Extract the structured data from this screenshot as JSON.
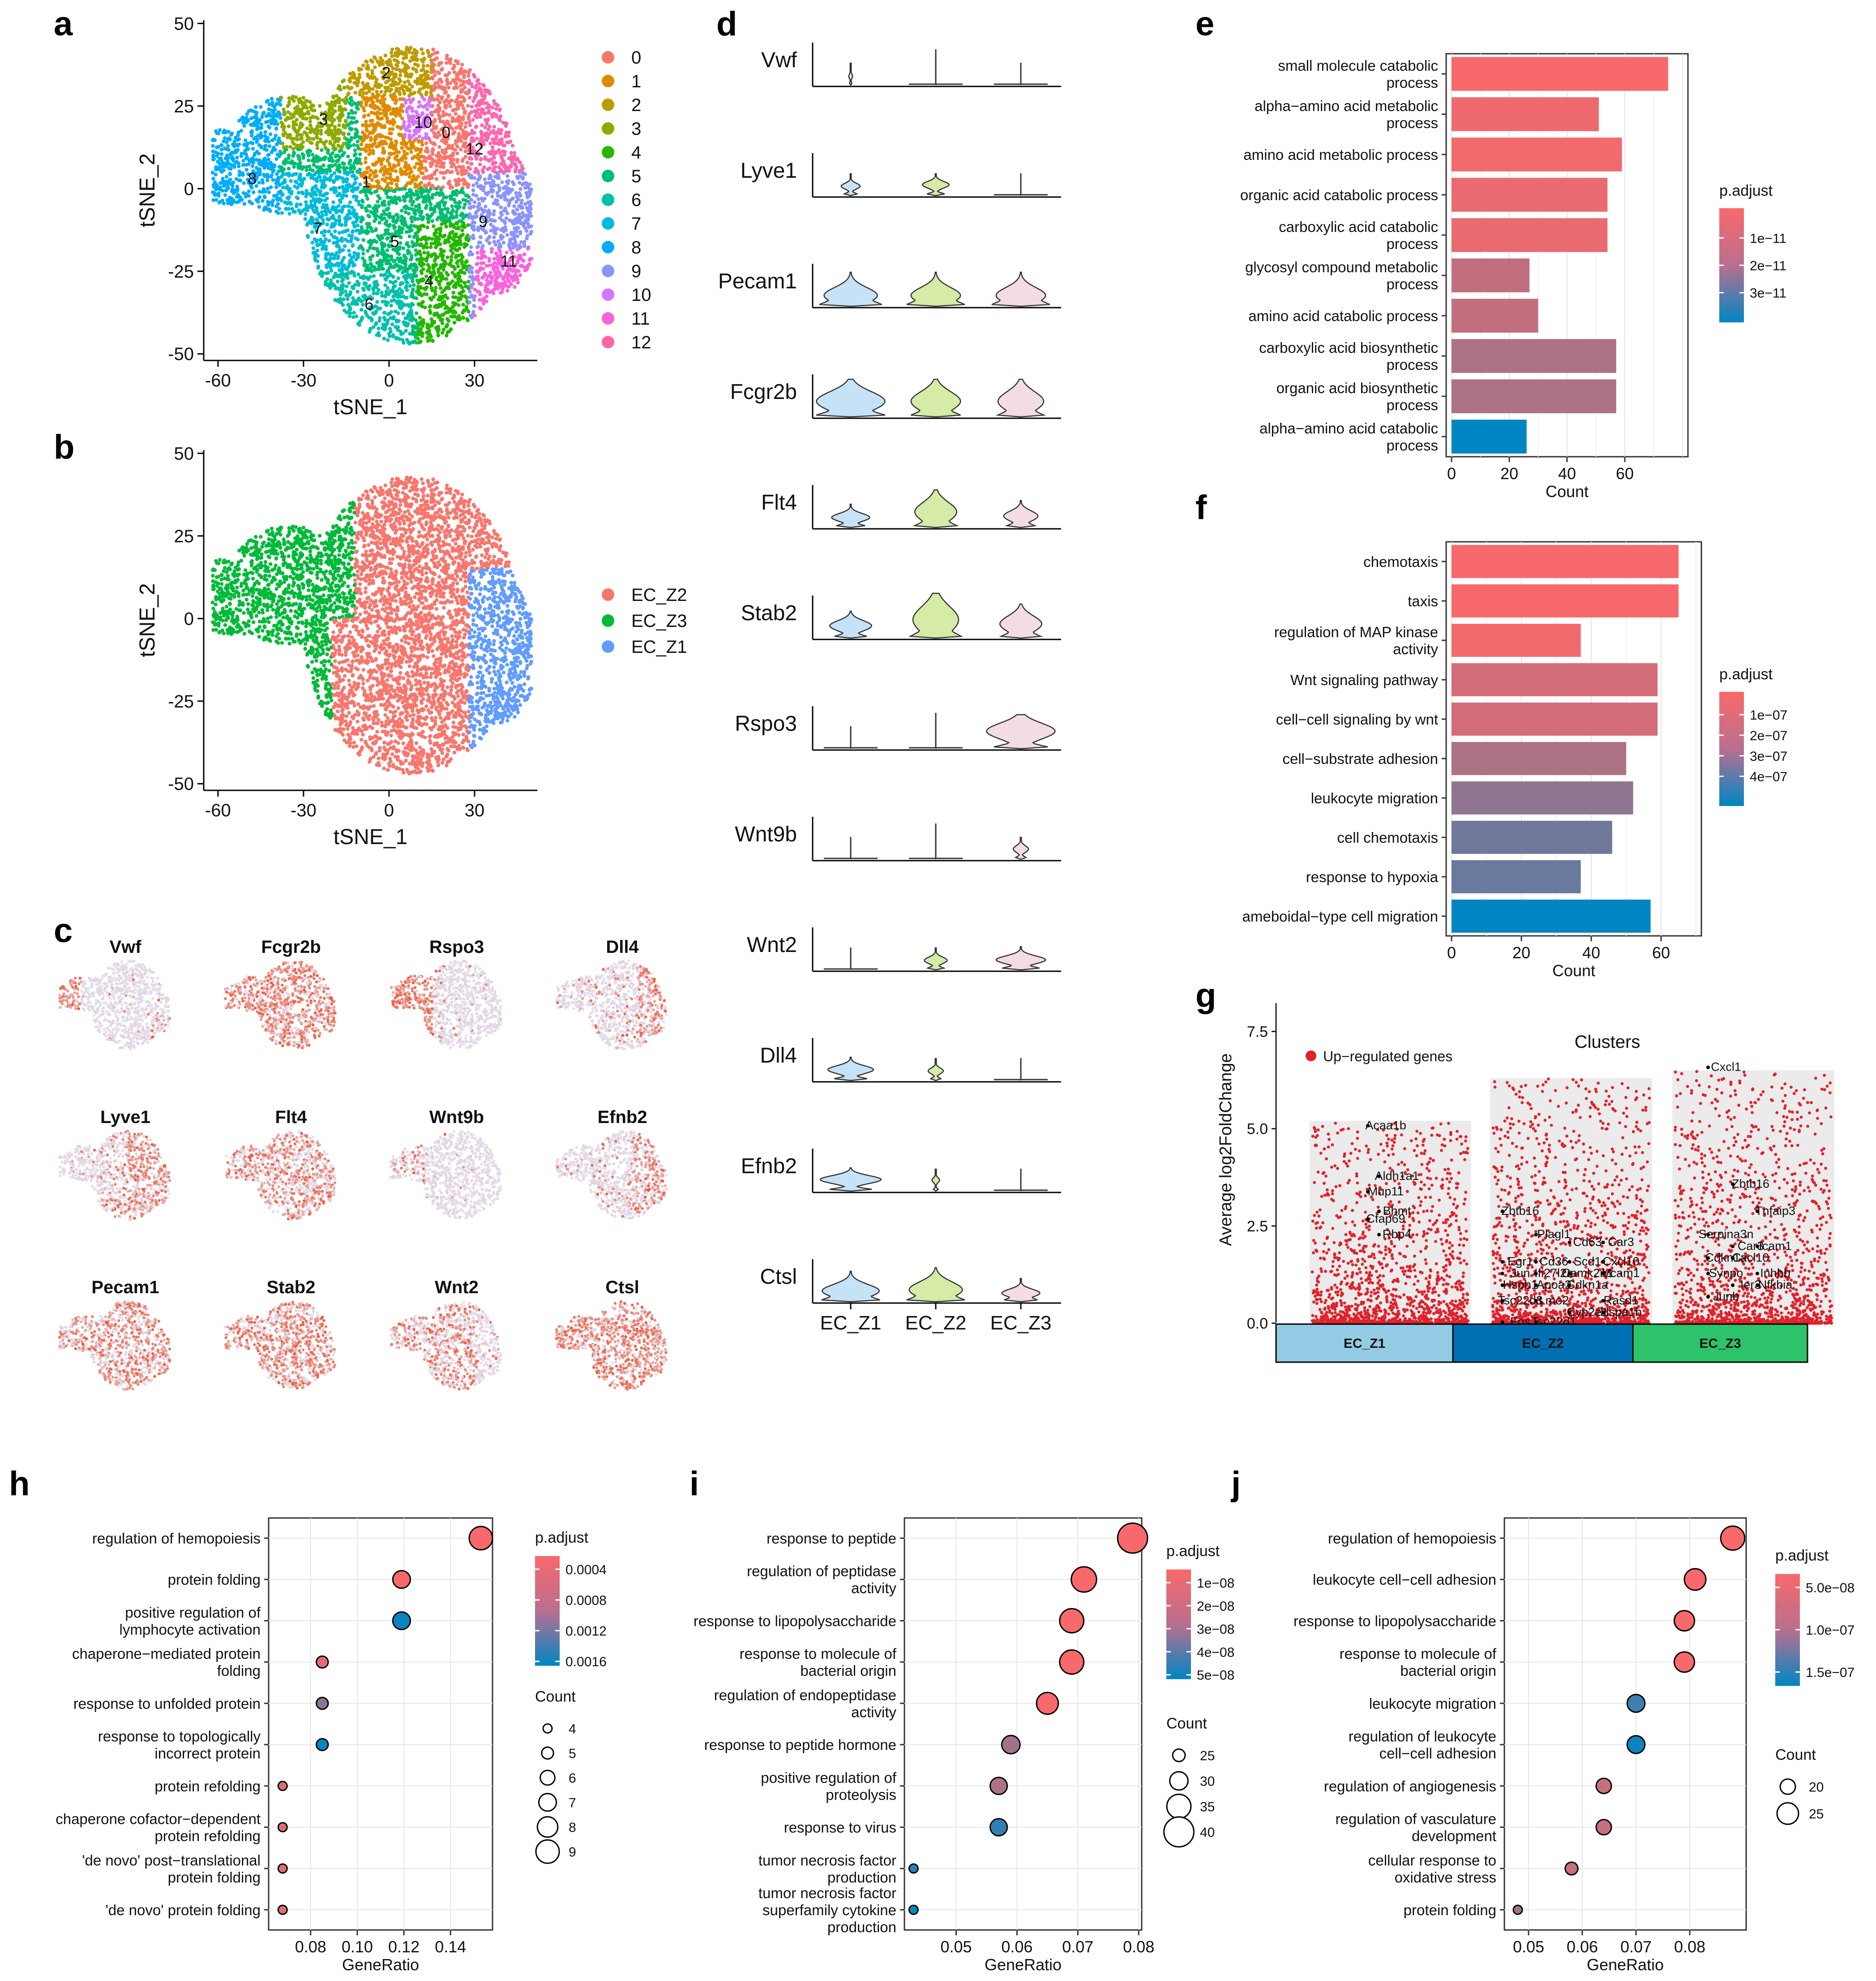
{
  "colors": {
    "clusters": [
      "#F8766D",
      "#E18A00",
      "#BE9C00",
      "#8CAB00",
      "#24B700",
      "#00BE70",
      "#00C1AB",
      "#00BBDA",
      "#00ACFC",
      "#8B93FF",
      "#D575FE",
      "#F962DD",
      "#FF65AC"
    ],
    "zones": {
      "EC_Z2": "#F8766D",
      "EC_Z3": "#00BA38",
      "EC_Z1": "#619CFF"
    },
    "violin": {
      "EC_Z1": "#C6E2F7",
      "EC_Z2": "#D5EBA6",
      "EC_Z3": "#F3DCE4"
    },
    "featureLow": "#E3E4F5",
    "featureHigh": "#EE5A3A",
    "padjHigh": "#F8696B",
    "padjLow": "#0086C3",
    "up": "#E2212A",
    "zoneBoxes": {
      "EC_Z1": "#93CBE4",
      "EC_Z2": "#0070B3",
      "EC_Z3": "#2DC36A"
    }
  },
  "panel_a": {
    "label": "a",
    "xlabel": "tSNE_1",
    "ylabel": "tSNE_2",
    "xticks": [
      "-60",
      "-30",
      "0",
      "30"
    ],
    "yticks": [
      "50",
      "25",
      "0",
      "-25",
      "-50"
    ],
    "legend": [
      "0",
      "1",
      "2",
      "3",
      "4",
      "5",
      "6",
      "7",
      "8",
      "9",
      "10",
      "11",
      "12"
    ],
    "cluster_labels": [
      "0",
      "1",
      "2",
      "3",
      "4",
      "5",
      "6",
      "7",
      "8",
      "9",
      "10",
      "11",
      "12"
    ]
  },
  "panel_b": {
    "label": "b",
    "xlabel": "tSNE_1",
    "ylabel": "tSNE_2",
    "xticks": [
      "-60",
      "-30",
      "0",
      "30"
    ],
    "yticks": [
      "50",
      "25",
      "0",
      "-25",
      "-50"
    ],
    "legend": [
      "EC_Z2",
      "EC_Z3",
      "EC_Z1"
    ]
  },
  "panel_c": {
    "label": "c",
    "genes": [
      "Vwf",
      "Fcgr2b",
      "Rspo3",
      "Dll4",
      "Lyve1",
      "Flt4",
      "Wnt9b",
      "Efnb2",
      "Pecam1",
      "Stab2",
      "Wnt2",
      "Ctsl"
    ]
  },
  "panel_d": {
    "label": "d",
    "genes": [
      "Vwf",
      "Lyve1",
      "Pecam1",
      "Fcgr2b",
      "Flt4",
      "Stab2",
      "Rspo3",
      "Wnt9b",
      "Wnt2",
      "Dll4",
      "Efnb2",
      "Ctsl"
    ],
    "groups": [
      "EC_Z1",
      "EC_Z2",
      "EC_Z3"
    ]
  },
  "panel_e": {
    "label": "e",
    "chart_data": {
      "type": "bar",
      "orientation": "horizontal",
      "categories": [
        [
          "small molecule catabolic",
          "process"
        ],
        [
          "alpha−amino acid metabolic",
          "process"
        ],
        [
          "amino acid metabolic process"
        ],
        [
          "organic acid catabolic process"
        ],
        [
          "carboxylic acid catabolic",
          "process"
        ],
        [
          "glycosyl compound metabolic",
          "process"
        ],
        [
          "amino acid catabolic process"
        ],
        [
          "carboxylic acid biosynthetic",
          "process"
        ],
        [
          "organic acid biosynthetic",
          "process"
        ],
        [
          "alpha−amino acid catabolic",
          "process"
        ]
      ],
      "values": [
        75,
        51,
        59,
        54,
        54,
        27,
        30,
        57,
        57,
        26
      ],
      "padj_position": [
        0.0,
        0.04,
        0.02,
        0.06,
        0.06,
        0.22,
        0.22,
        0.3,
        0.3,
        1.0
      ],
      "xlabel": "Count",
      "xticks": [
        "0",
        "20",
        "40",
        "60"
      ],
      "xlim": [
        0,
        80
      ],
      "legend_title": "p.adjust",
      "legend_ticks": [
        "1e−11",
        "2e−11",
        "3e−11"
      ]
    }
  },
  "panel_f": {
    "label": "f",
    "chart_data": {
      "type": "bar",
      "orientation": "horizontal",
      "categories": [
        [
          "chemotaxis"
        ],
        [
          "taxis"
        ],
        [
          "regulation of MAP kinase",
          "activity"
        ],
        [
          "Wnt signaling pathway"
        ],
        [
          "cell−cell signaling by wnt"
        ],
        [
          "cell−substrate adhesion"
        ],
        [
          "leukocyte migration"
        ],
        [
          "cell chemotaxis"
        ],
        [
          "response to hypoxia"
        ],
        [
          "ameboidal−type cell migration"
        ]
      ],
      "values": [
        65,
        65,
        37,
        59,
        59,
        50,
        52,
        46,
        37,
        57
      ],
      "padj_position": [
        0.0,
        0.0,
        0.02,
        0.15,
        0.15,
        0.3,
        0.42,
        0.55,
        0.58,
        1.0
      ],
      "xlabel": "Count",
      "xticks": [
        "0",
        "20",
        "40",
        "60"
      ],
      "xlim": [
        0,
        70
      ],
      "legend_title": "p.adjust",
      "legend_ticks": [
        "1e−07",
        "2e−07",
        "3e−07",
        "4e−07"
      ]
    }
  },
  "panel_g": {
    "label": "g",
    "chart_data": {
      "type": "scatter",
      "title": "Clusters",
      "ylabel": "Average log2FoldChange",
      "yticks": [
        "0.0",
        "2.5",
        "5.0",
        "7.5"
      ],
      "ylim": [
        0,
        8
      ],
      "legend": "Up−regulated genes",
      "groups": [
        "EC_Z1",
        "EC_Z2",
        "EC_Z3"
      ],
      "labeled_genes": {
        "EC_Z1": [
          [
            "Acaa1b",
            5.1
          ],
          [
            "Aldh1a1",
            3.8
          ],
          [
            "Mup11",
            3.4
          ],
          [
            "Bhmt",
            2.9
          ],
          [
            "Cfap69",
            2.7
          ],
          [
            "Rbp4",
            2.3
          ]
        ],
        "EC_Z2": [
          [
            "Zbtb16",
            2.9
          ],
          [
            "Plagl1",
            2.3
          ],
          [
            "Cd63",
            2.1
          ],
          [
            "Car3",
            2.1
          ],
          [
            "Egr1",
            1.6
          ],
          [
            "Cd36",
            1.6
          ],
          [
            "Scd1",
            1.6
          ],
          [
            "Cxcl10",
            1.6
          ],
          [
            "Jun",
            1.3
          ],
          [
            "Ifi27l2a",
            1.3
          ],
          [
            "Camk2n1",
            1.3
          ],
          [
            "Vcam1",
            1.3
          ],
          [
            "Hspb1",
            1.0
          ],
          [
            "Apoa2",
            1.0
          ],
          [
            "Cdkn1a",
            1.0
          ],
          [
            "Rasd1",
            0.6
          ],
          [
            "Tsc22d3",
            0.6
          ],
          [
            "Lmo2",
            0.6
          ],
          [
            "Cyp2e1",
            0.3
          ],
          [
            "Hspa1b",
            0.3
          ],
          [
            "Fos",
            0.05
          ],
          [
            "Tsc22d1",
            0.05
          ]
        ],
        "EC_Z3": [
          [
            "Cxcl1",
            6.6
          ],
          [
            "Zbtb16",
            3.6
          ],
          [
            "Tnfaip3",
            2.9
          ],
          [
            "Serpina3n",
            2.3
          ],
          [
            "Car3",
            2.0
          ],
          [
            "Icam1",
            2.0
          ],
          [
            "Cdkn1a",
            1.7
          ],
          [
            "Cxcl10",
            1.7
          ],
          [
            "Inhbb",
            1.3
          ],
          [
            "Synpo",
            1.3
          ],
          [
            "Ier3",
            1.0
          ],
          [
            "Nfkbia",
            1.0
          ],
          [
            "Junb",
            0.7
          ]
        ]
      }
    }
  },
  "panel_h": {
    "label": "h",
    "chart_data": {
      "type": "scatter",
      "categories": [
        [
          "regulation of hemopoiesis"
        ],
        [
          "protein folding"
        ],
        [
          "positive regulation of",
          "lymphocyte activation"
        ],
        [
          "chaperone−mediated protein",
          "folding"
        ],
        [
          "response to unfolded protein"
        ],
        [
          "response to topologically",
          "incorrect protein"
        ],
        [
          "protein refolding"
        ],
        [
          "chaperone cofactor−dependent",
          "protein refolding"
        ],
        [
          "'de novo' post−translational",
          "protein folding"
        ],
        [
          "'de novo' protein folding"
        ]
      ],
      "gene_ratio": [
        0.153,
        0.119,
        0.119,
        0.085,
        0.085,
        0.085,
        0.068,
        0.068,
        0.068,
        0.068
      ],
      "count": [
        9,
        7,
        7,
        5,
        5,
        5,
        4,
        4,
        4,
        4
      ],
      "padj_position": [
        0.0,
        0.0,
        0.95,
        0.1,
        0.45,
        0.95,
        0.1,
        0.1,
        0.1,
        0.1
      ],
      "xlabel": "GeneRatio",
      "xticks": [
        0.08,
        0.1,
        0.12,
        0.14
      ],
      "xtick_labels": [
        "0.08",
        "0.10",
        "0.12",
        "0.14"
      ],
      "xlim": [
        0.062,
        0.158
      ],
      "legend_title": "p.adjust",
      "legend_ticks": [
        "0.0004",
        "0.0008",
        "0.0012",
        "0.0016"
      ],
      "size_title": "Count",
      "size_ticks": [
        "4",
        "5",
        "6",
        "7",
        "8",
        "9"
      ]
    }
  },
  "panel_i": {
    "label": "i",
    "chart_data": {
      "type": "scatter",
      "categories": [
        [
          "response to peptide"
        ],
        [
          "regulation of peptidase",
          "activity"
        ],
        [
          "response to lipopolysaccharide"
        ],
        [
          "response to molecule of",
          "bacterial origin"
        ],
        [
          "regulation of endopeptidase",
          "activity"
        ],
        [
          "response to peptide hormone"
        ],
        [
          "positive regulation of",
          "proteolysis"
        ],
        [
          "response to virus"
        ],
        [
          "tumor necrosis factor",
          "production"
        ],
        [
          "tumor necrosis factor",
          "superfamily cytokine",
          "production"
        ]
      ],
      "gene_ratio": [
        0.079,
        0.071,
        0.069,
        0.069,
        0.065,
        0.059,
        0.057,
        0.057,
        0.043,
        0.043
      ],
      "count": [
        40,
        36,
        35,
        35,
        33,
        30,
        29,
        29,
        22,
        22
      ],
      "padj_position": [
        0.0,
        0.0,
        0.0,
        0.0,
        0.0,
        0.35,
        0.3,
        0.8,
        0.85,
        0.95
      ],
      "xlabel": "GeneRatio",
      "xticks": [
        0.05,
        0.06,
        0.07,
        0.08
      ],
      "xtick_labels": [
        "0.05",
        "0.06",
        "0.07",
        "0.08"
      ],
      "xlim": [
        0.0415,
        0.0805
      ],
      "legend_title": "p.adjust",
      "legend_ticks": [
        "1e−08",
        "2e−08",
        "3e−08",
        "4e−08",
        "5e−08"
      ],
      "size_title": "Count",
      "size_ticks": [
        "25",
        "30",
        "35",
        "40"
      ]
    }
  },
  "panel_j": {
    "label": "j",
    "chart_data": {
      "type": "scatter",
      "categories": [
        [
          "regulation of hemopoiesis"
        ],
        [
          "leukocyte cell−cell adhesion"
        ],
        [
          "response to lipopolysaccharide"
        ],
        [
          "response to molecule of",
          "bacterial origin"
        ],
        [
          "leukocyte migration"
        ],
        [
          "regulation of leukocyte",
          "cell−cell adhesion"
        ],
        [
          "regulation of angiogenesis"
        ],
        [
          "regulation of vasculature",
          "development"
        ],
        [
          "cellular response to",
          "oxidative stress"
        ],
        [
          "protein folding"
        ]
      ],
      "gene_ratio": [
        0.088,
        0.081,
        0.079,
        0.079,
        0.07,
        0.07,
        0.064,
        0.064,
        0.058,
        0.048
      ],
      "count": [
        27,
        25,
        24,
        24,
        22,
        22,
        20,
        20,
        18,
        15
      ],
      "padj_position": [
        0.0,
        0.0,
        0.0,
        0.0,
        0.75,
        0.95,
        0.2,
        0.2,
        0.2,
        0.35
      ],
      "xlabel": "GeneRatio",
      "xticks": [
        0.05,
        0.06,
        0.07,
        0.08
      ],
      "xtick_labels": [
        "0.05",
        "0.06",
        "0.07",
        "0.08"
      ],
      "xlim": [
        0.0455,
        0.0905
      ],
      "legend_title": "p.adjust",
      "legend_ticks": [
        "5.0e−08",
        "1.0e−07",
        "1.5e−07"
      ],
      "size_title": "Count",
      "size_ticks": [
        "20",
        "25"
      ]
    }
  }
}
